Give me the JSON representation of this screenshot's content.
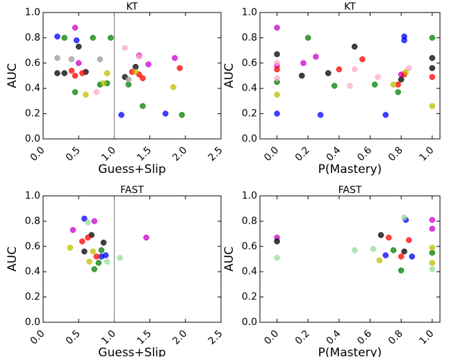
{
  "chart_data": [
    {
      "type": "scatter",
      "title": "KT",
      "xlabel": "Guess+Slip",
      "ylabel": "AUC",
      "xlim": [
        0,
        2.5
      ],
      "ylim": [
        0,
        1.0
      ],
      "vline": 1.0,
      "xticks": [
        {
          "value": 0,
          "label": "0.0"
        },
        {
          "value": 0.5,
          "label": "0.5"
        },
        {
          "value": 1.0,
          "label": "1.0"
        },
        {
          "value": 1.5,
          "label": "1.5"
        },
        {
          "value": 2.0,
          "label": "2.0"
        },
        {
          "value": 2.5,
          "label": "2.5"
        }
      ],
      "yticks": [
        {
          "value": 0,
          "label": "0.0"
        },
        0.2,
        0.4,
        0.6,
        0.8,
        {
          "value": 1.0,
          "label": "1.0"
        }
      ],
      "series": [
        {
          "color": "#0000ff",
          "x": [
            0.2,
            0.47,
            1.1,
            1.72
          ],
          "values": [
            0.81,
            0.78,
            0.19,
            0.2
          ]
        },
        {
          "color": "#cc00cc",
          "x": [
            0.45,
            0.5,
            1.35,
            1.48,
            1.85
          ],
          "values": [
            0.88,
            0.6,
            0.66,
            0.59,
            0.64
          ]
        },
        {
          "color": "#000000",
          "x": [
            0.5,
            0.2,
            0.3,
            1.15,
            1.3,
            0.6
          ],
          "values": [
            0.73,
            0.52,
            0.52,
            0.49,
            0.57,
            0.53
          ]
        },
        {
          "color": "#ff0000",
          "x": [
            0.55,
            0.45,
            1.25,
            1.35,
            1.4,
            1.92,
            0.4
          ],
          "values": [
            0.52,
            0.5,
            0.53,
            0.51,
            0.48,
            0.56,
            0.54
          ]
        },
        {
          "color": "#008000",
          "x": [
            0.45,
            0.8,
            0.9,
            1.2,
            1.95,
            0.3,
            0.7,
            0.95,
            1.4
          ],
          "values": [
            0.37,
            0.43,
            0.44,
            0.43,
            0.19,
            0.8,
            0.8,
            0.8,
            0.26
          ]
        },
        {
          "color": "#999999",
          "x": [
            0.2,
            0.4,
            0.8,
            1.2
          ],
          "values": [
            0.64,
            0.63,
            0.63,
            0.47
          ]
        },
        {
          "color": "#bfbf00",
          "x": [
            0.6,
            0.9,
            0.85,
            1.3,
            1.83
          ],
          "values": [
            0.35,
            0.52,
            0.44,
            0.53,
            0.41
          ]
        },
        {
          "color": "#ffaacc",
          "x": [
            1.35,
            1.15,
            0.75
          ],
          "values": [
            0.65,
            0.72,
            0.37
          ]
        }
      ]
    },
    {
      "type": "scatter",
      "title": "KT",
      "xlabel": "P(Mastery)",
      "ylabel": "AUC",
      "xlim": [
        -0.11,
        1.05
      ],
      "ylim": [
        0,
        1.0
      ],
      "xticks": [
        {
          "value": 0,
          "label": "0.0"
        },
        0.2,
        0.4,
        0.6,
        0.8,
        {
          "value": 1.0,
          "label": "1.0"
        }
      ],
      "yticks": [
        {
          "value": 0,
          "label": "0.0"
        },
        0.2,
        0.4,
        0.6,
        0.8,
        {
          "value": 1.0,
          "label": "1.0"
        }
      ],
      "series": [
        {
          "color": "#0000ff",
          "x": [
            0.0,
            0.28,
            0.7,
            0.82,
            0.82
          ],
          "values": [
            0.2,
            0.19,
            0.19,
            0.81,
            0.78
          ]
        },
        {
          "color": "#cc00cc",
          "x": [
            0.0,
            0.0,
            0.17,
            0.25,
            0.8
          ],
          "values": [
            0.88,
            0.58,
            0.6,
            0.65,
            0.51
          ]
        },
        {
          "color": "#000000",
          "x": [
            0.0,
            0.5,
            0.16,
            0.33,
            1.0,
            1.0,
            0.8
          ],
          "values": [
            0.67,
            0.73,
            0.5,
            0.52,
            0.64,
            0.56,
            0.47
          ]
        },
        {
          "color": "#ff0000",
          "x": [
            0.0,
            0.4,
            0.55,
            0.78,
            1.0,
            0.82
          ],
          "values": [
            0.55,
            0.55,
            0.63,
            0.43,
            0.49,
            0.51
          ]
        },
        {
          "color": "#008000",
          "x": [
            0.0,
            0.2,
            0.37,
            0.63,
            0.78,
            1.0
          ],
          "values": [
            0.45,
            0.8,
            0.42,
            0.43,
            0.37,
            0.8
          ]
        },
        {
          "color": "#bfbf00",
          "x": [
            0.0,
            0.75,
            0.83,
            1.0
          ],
          "values": [
            0.35,
            0.43,
            0.53,
            0.26
          ]
        },
        {
          "color": "#ffaacc",
          "x": [
            0.0,
            0.0,
            0.47,
            0.65,
            0.85,
            0.5
          ],
          "values": [
            0.6,
            0.48,
            0.42,
            0.49,
            0.56,
            0.55
          ]
        }
      ]
    },
    {
      "type": "scatter",
      "title": "FAST",
      "xlabel": "Guess+Slip",
      "ylabel": "AUC",
      "xlim": [
        0,
        2.5
      ],
      "ylim": [
        0,
        1.0
      ],
      "vline": 1.0,
      "xticks": [
        {
          "value": 0,
          "label": "0.0"
        },
        {
          "value": 0.5,
          "label": "0.5"
        },
        {
          "value": 1.0,
          "label": "1.0"
        },
        {
          "value": 1.5,
          "label": "1.5"
        },
        {
          "value": 2.0,
          "label": "2.0"
        },
        {
          "value": 2.5,
          "label": "2.5"
        }
      ],
      "yticks": [
        {
          "value": 0,
          "label": "0.0"
        },
        0.2,
        0.4,
        0.6,
        0.8,
        {
          "value": 1.0,
          "label": "1.0"
        }
      ],
      "series": [
        {
          "color": "#0000ff",
          "x": [
            0.58,
            0.82,
            0.88
          ],
          "values": [
            0.82,
            0.52,
            0.53
          ]
        },
        {
          "color": "#cc00cc",
          "x": [
            0.42,
            0.72,
            1.45
          ],
          "values": [
            0.73,
            0.8,
            0.67
          ]
        },
        {
          "color": "#000000",
          "x": [
            0.58,
            0.68,
            0.85
          ],
          "values": [
            0.56,
            0.69,
            0.63
          ]
        },
        {
          "color": "#ff0000",
          "x": [
            0.55,
            0.63,
            0.75
          ],
          "values": [
            0.64,
            0.67,
            0.52
          ]
        },
        {
          "color": "#008000",
          "x": [
            0.72,
            0.82,
            0.78
          ],
          "values": [
            0.42,
            0.57,
            0.47
          ]
        },
        {
          "color": "#bfbf00",
          "x": [
            0.38,
            0.65,
            0.7
          ],
          "values": [
            0.59,
            0.48,
            0.56
          ]
        },
        {
          "color": "#99dd99",
          "x": [
            0.63,
            1.08,
            0.9
          ],
          "values": [
            0.79,
            0.51,
            0.48
          ]
        }
      ]
    },
    {
      "type": "scatter",
      "title": "FAST",
      "xlabel": "P(Mastery)",
      "ylabel": "AUC",
      "xlim": [
        -0.11,
        1.05
      ],
      "ylim": [
        0,
        1.0
      ],
      "xticks": [
        {
          "value": 0,
          "label": "0.0"
        },
        0.2,
        0.4,
        0.6,
        0.8,
        {
          "value": 1.0,
          "label": "1.0"
        }
      ],
      "yticks": [
        {
          "value": 0,
          "label": "0.0"
        },
        0.2,
        0.4,
        0.6,
        0.8,
        {
          "value": 1.0,
          "label": "1.0"
        }
      ],
      "series": [
        {
          "color": "#0000ff",
          "x": [
            0.7,
            0.83,
            0.87
          ],
          "values": [
            0.53,
            0.81,
            0.52
          ]
        },
        {
          "color": "#cc00cc",
          "x": [
            0.0,
            1.0,
            1.0
          ],
          "values": [
            0.67,
            0.81,
            0.74
          ]
        },
        {
          "color": "#000000",
          "x": [
            0.0,
            0.67,
            0.82
          ],
          "values": [
            0.64,
            0.69,
            0.56
          ]
        },
        {
          "color": "#ff0000",
          "x": [
            0.72,
            0.85,
            0.8
          ],
          "values": [
            0.67,
            0.65,
            0.52
          ]
        },
        {
          "color": "#008000",
          "x": [
            0.75,
            0.8,
            1.0
          ],
          "values": [
            0.57,
            0.41,
            0.55
          ]
        },
        {
          "color": "#bfbf00",
          "x": [
            0.66,
            1.0,
            1.0
          ],
          "values": [
            0.49,
            0.59,
            0.47
          ]
        },
        {
          "color": "#99dd99",
          "x": [
            0.0,
            0.5,
            0.62,
            0.82,
            1.0
          ],
          "values": [
            0.51,
            0.57,
            0.58,
            0.83,
            0.42
          ]
        }
      ]
    }
  ]
}
